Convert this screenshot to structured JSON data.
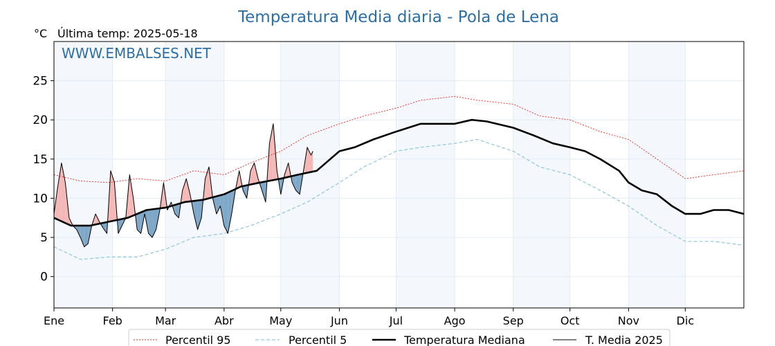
{
  "chart_data": {
    "type": "line",
    "title": "Temperatura Media diaria - Pola de Lena",
    "unit_label": "°C",
    "last_temp_label": "Última temp: 2025-05-18",
    "watermark": "WWW.EMBALSES.NET",
    "ylim": [
      -4,
      30
    ],
    "yticks": [
      0,
      5,
      10,
      15,
      20,
      25
    ],
    "xlim": [
      1,
      366
    ],
    "months": [
      {
        "label": "Ene",
        "start": 1
      },
      {
        "label": "Feb",
        "start": 32
      },
      {
        "label": "Mar",
        "start": 60
      },
      {
        "label": "Abr",
        "start": 91
      },
      {
        "label": "May",
        "start": 121
      },
      {
        "label": "Jun",
        "start": 152
      },
      {
        "label": "Jul",
        "start": 182
      },
      {
        "label": "Ago",
        "start": 213
      },
      {
        "label": "Sep",
        "start": 244
      },
      {
        "label": "Oct",
        "start": 274
      },
      {
        "label": "Nov",
        "start": 305
      },
      {
        "label": "Dic",
        "start": 335
      }
    ],
    "grid": true,
    "legend_position": "bottom-center",
    "series": [
      {
        "name": "Percentil 95",
        "color": "#e8241c",
        "style": "dotted",
        "x": [
          1,
          15,
          30,
          45,
          60,
          75,
          91,
          105,
          121,
          135,
          152,
          165,
          182,
          195,
          213,
          225,
          244,
          258,
          274,
          290,
          305,
          320,
          335,
          350,
          366
        ],
        "y": [
          13.0,
          12.2,
          12.0,
          12.5,
          12.2,
          13.5,
          13.0,
          14.5,
          16.0,
          18.0,
          19.5,
          20.5,
          21.5,
          22.5,
          23.0,
          22.5,
          22.0,
          20.5,
          20.0,
          18.5,
          17.5,
          15.0,
          12.5,
          13.0,
          13.5
        ]
      },
      {
        "name": "Percentil 5",
        "color": "#8ec6db",
        "style": "dashed",
        "x": [
          1,
          15,
          30,
          45,
          60,
          75,
          91,
          105,
          121,
          135,
          152,
          165,
          182,
          195,
          213,
          225,
          244,
          258,
          274,
          290,
          305,
          320,
          335,
          350,
          366
        ],
        "y": [
          3.8,
          2.2,
          2.5,
          2.5,
          3.5,
          5.0,
          5.5,
          6.5,
          8.0,
          9.5,
          12.0,
          14.0,
          16.0,
          16.5,
          17.0,
          17.5,
          16.0,
          14.0,
          13.0,
          11.0,
          9.0,
          6.5,
          4.5,
          4.5,
          4.0
        ]
      },
      {
        "name": "Temperatura Mediana",
        "color": "#000000",
        "style": "solid-thick",
        "x": [
          1,
          10,
          20,
          30,
          40,
          50,
          60,
          70,
          80,
          91,
          100,
          110,
          121,
          130,
          140,
          152,
          160,
          170,
          182,
          195,
          205,
          213,
          222,
          230,
          244,
          255,
          265,
          274,
          282,
          290,
          300,
          305,
          312,
          320,
          328,
          335,
          343,
          350,
          358,
          366
        ],
        "y": [
          7.5,
          6.5,
          6.5,
          7.0,
          7.5,
          8.5,
          8.8,
          9.5,
          9.8,
          10.5,
          11.5,
          12.0,
          12.5,
          13.0,
          13.5,
          16.0,
          16.5,
          17.5,
          18.5,
          19.5,
          19.5,
          19.5,
          20.0,
          19.8,
          19.0,
          18.0,
          17.0,
          16.5,
          16.0,
          15.0,
          13.5,
          12.0,
          11.0,
          10.5,
          9.0,
          8.0,
          8.0,
          8.5,
          8.5,
          8.0
        ]
      },
      {
        "name": "T. Media 2025",
        "color": "#000000",
        "style": "solid-thin",
        "x": [
          1,
          3,
          5,
          7,
          9,
          11,
          13,
          15,
          17,
          19,
          21,
          23,
          25,
          27,
          29,
          31,
          33,
          35,
          37,
          39,
          41,
          43,
          45,
          47,
          49,
          51,
          53,
          55,
          57,
          59,
          61,
          63,
          65,
          67,
          69,
          71,
          73,
          75,
          77,
          79,
          81,
          83,
          85,
          87,
          89,
          91,
          93,
          95,
          97,
          99,
          101,
          103,
          105,
          107,
          109,
          111,
          113,
          115,
          117,
          119,
          121,
          123,
          125,
          127,
          129,
          131,
          133,
          135,
          137,
          138
        ],
        "y": [
          8.0,
          11.5,
          14.5,
          12.0,
          7.5,
          6.5,
          6.0,
          5.0,
          3.8,
          4.2,
          6.5,
          8.0,
          7.0,
          6.2,
          5.5,
          13.5,
          12.0,
          5.5,
          6.5,
          7.5,
          13.0,
          10.0,
          6.0,
          5.5,
          8.0,
          5.5,
          5.0,
          6.0,
          8.5,
          12.0,
          8.5,
          9.5,
          8.0,
          7.5,
          11.0,
          12.5,
          10.5,
          8.0,
          6.0,
          7.5,
          12.5,
          14.0,
          10.0,
          8.0,
          9.0,
          6.5,
          5.5,
          8.0,
          11.0,
          13.5,
          11.0,
          10.0,
          13.5,
          14.5,
          12.5,
          11.0,
          9.5,
          17.0,
          19.5,
          13.5,
          10.5,
          13.0,
          14.5,
          12.0,
          11.0,
          10.5,
          13.5,
          16.5,
          15.5,
          16.0
        ]
      }
    ]
  }
}
